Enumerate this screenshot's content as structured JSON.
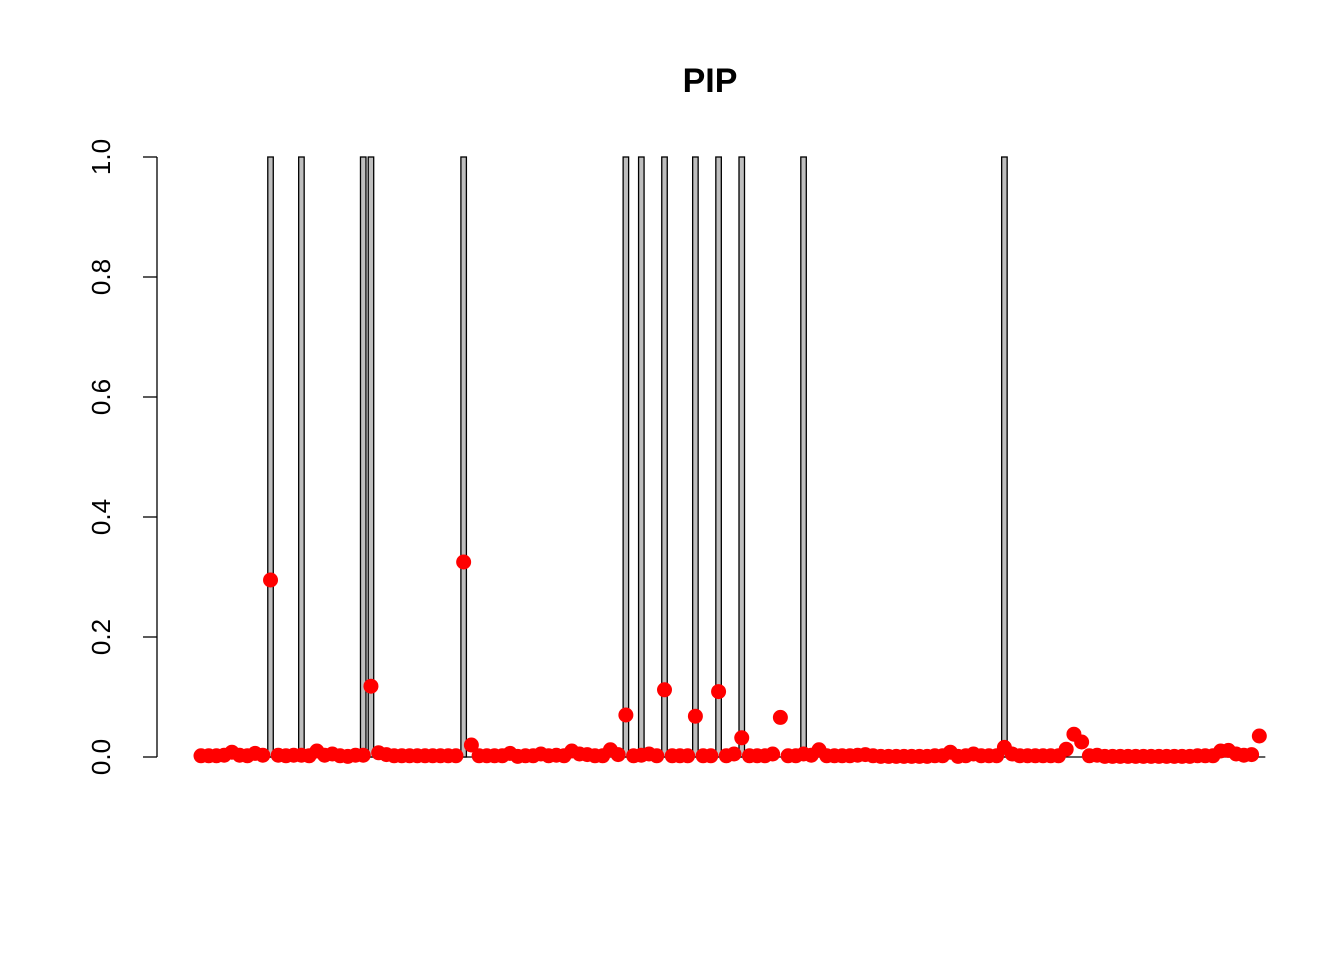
{
  "chart_data": {
    "type": "bar",
    "title": "PIP",
    "xlabel": "",
    "ylabel": "",
    "ylim": [
      0,
      1
    ],
    "yticks": [
      0.0,
      0.2,
      0.4,
      0.6,
      0.8,
      1.0
    ],
    "ytick_labels": [
      "0.0",
      "0.2",
      "0.4",
      "0.6",
      "0.8",
      "1.0"
    ],
    "n": 138,
    "bars": {
      "name": "",
      "color": "#bebebe",
      "indices": [
        10,
        14,
        22,
        23,
        35,
        56,
        58,
        61,
        65,
        68,
        71,
        79,
        105
      ],
      "values": [
        1,
        1,
        1,
        1,
        1,
        1,
        1,
        1,
        1,
        1,
        1,
        1,
        1
      ]
    },
    "points": {
      "name": "",
      "color": "#ff0000",
      "values": [
        0.002,
        0.002,
        0.002,
        0.003,
        0.008,
        0.003,
        0.002,
        0.006,
        0.003,
        0.295,
        0.003,
        0.002,
        0.003,
        0.003,
        0.002,
        0.01,
        0.003,
        0.005,
        0.002,
        0.001,
        0.003,
        0.003,
        0.118,
        0.007,
        0.004,
        0.002,
        0.002,
        0.002,
        0.002,
        0.002,
        0.002,
        0.002,
        0.002,
        0.002,
        0.325,
        0.02,
        0.002,
        0.002,
        0.002,
        0.002,
        0.006,
        0.001,
        0.002,
        0.002,
        0.005,
        0.002,
        0.003,
        0.002,
        0.01,
        0.005,
        0.004,
        0.002,
        0.002,
        0.012,
        0.004,
        0.07,
        0.002,
        0.003,
        0.005,
        0.002,
        0.112,
        0.002,
        0.002,
        0.002,
        0.068,
        0.002,
        0.002,
        0.109,
        0.002,
        0.005,
        0.032,
        0.002,
        0.002,
        0.002,
        0.005,
        0.066,
        0.002,
        0.002,
        0.005,
        0.003,
        0.012,
        0.002,
        0.002,
        0.002,
        0.002,
        0.003,
        0.004,
        0.002,
        0.001,
        0.001,
        0.001,
        0.001,
        0.001,
        0.001,
        0.001,
        0.002,
        0.002,
        0.008,
        0.001,
        0.002,
        0.005,
        0.002,
        0.002,
        0.002,
        0.016,
        0.005,
        0.002,
        0.002,
        0.002,
        0.002,
        0.002,
        0.002,
        0.013,
        0.038,
        0.025,
        0.002,
        0.003,
        0.001,
        0.001,
        0.001,
        0.001,
        0.001,
        0.001,
        0.001,
        0.001,
        0.001,
        0.001,
        0.001,
        0.001,
        0.002,
        0.002,
        0.002,
        0.01,
        0.011,
        0.005,
        0.003,
        0.004,
        0.035
      ]
    }
  }
}
